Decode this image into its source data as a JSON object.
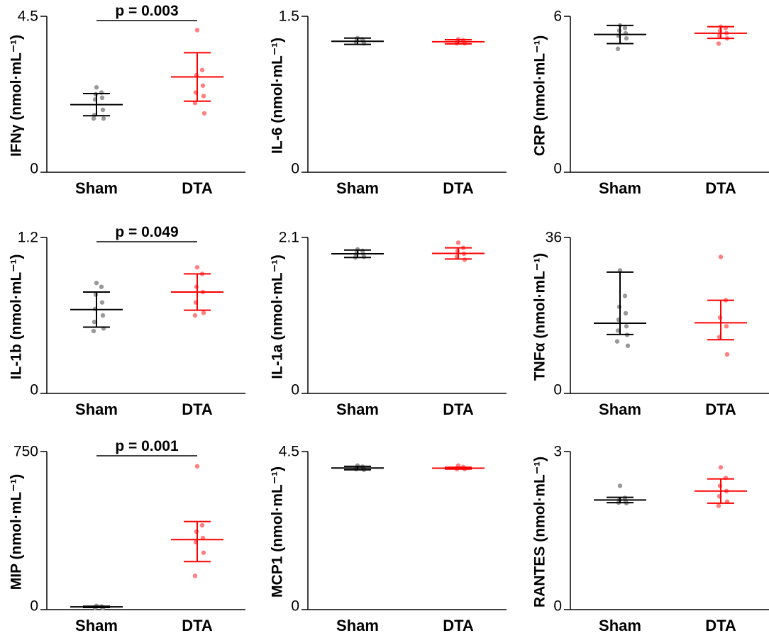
{
  "figure": {
    "group_colors": {
      "Sham": "#000000",
      "DTA": "#ff0000"
    },
    "point_colors": {
      "Sham": "#999999",
      "DTA": "#ff8080"
    }
  },
  "chart_data": [
    {
      "type": "scatter",
      "title": "",
      "xlabel": "",
      "ylabel": "IFNγ (nmol·mL⁻¹)",
      "categories": [
        "Sham",
        "DTA"
      ],
      "ylim": [
        0,
        4.5
      ],
      "yticks": [
        "0",
        "4.5"
      ],
      "pvalue": "p = 0.003",
      "series": [
        {
          "name": "Sham",
          "mean": 1.95,
          "error_low": 1.63,
          "error_high": 2.27,
          "points": [
            2.45,
            2.3,
            2.25,
            2.15,
            2.1,
            1.8,
            1.65,
            1.55,
            1.55
          ]
        },
        {
          "name": "DTA",
          "mean": 2.75,
          "error_low": 2.05,
          "error_high": 3.45,
          "points": [
            4.1,
            2.95,
            2.8,
            2.5,
            2.3,
            2.2,
            2.0,
            1.7
          ]
        }
      ]
    },
    {
      "type": "scatter",
      "title": "",
      "xlabel": "",
      "ylabel": "IL-6 (nmol·mL⁻¹)",
      "categories": [
        "Sham",
        "DTA"
      ],
      "ylim": [
        0,
        1.5
      ],
      "yticks": [
        "0",
        "1.5"
      ],
      "pvalue": "",
      "series": [
        {
          "name": "Sham",
          "mean": 1.26,
          "error_low": 1.23,
          "error_high": 1.29,
          "points": [
            1.29,
            1.28,
            1.27,
            1.26,
            1.25,
            1.24
          ]
        },
        {
          "name": "DTA",
          "mean": 1.255,
          "error_low": 1.235,
          "error_high": 1.275,
          "points": [
            1.28,
            1.27,
            1.26,
            1.25,
            1.24,
            1.24
          ]
        }
      ]
    },
    {
      "type": "scatter",
      "title": "",
      "xlabel": "",
      "ylabel": "CRP (nmol·mL⁻¹)",
      "categories": [
        "Sham",
        "DTA"
      ],
      "ylim": [
        0,
        6
      ],
      "yticks": [
        "0",
        "6"
      ],
      "pvalue": "",
      "series": [
        {
          "name": "Sham",
          "mean": 5.3,
          "error_low": 4.95,
          "error_high": 5.65,
          "points": [
            5.65,
            5.55,
            5.45,
            5.35,
            5.25,
            5.15,
            4.75
          ]
        },
        {
          "name": "DTA",
          "mean": 5.35,
          "error_low": 5.15,
          "error_high": 5.6,
          "points": [
            5.6,
            5.55,
            5.45,
            5.35,
            5.25,
            5.15,
            4.95
          ]
        }
      ]
    },
    {
      "type": "scatter",
      "title": "",
      "xlabel": "",
      "ylabel": "IL-1b (nmol·mL⁻¹)",
      "categories": [
        "Sham",
        "DTA"
      ],
      "ylim": [
        0,
        1.2
      ],
      "yticks": [
        "0",
        "1.2"
      ],
      "pvalue": "p = 0.049",
      "series": [
        {
          "name": "Sham",
          "mean": 0.645,
          "error_low": 0.51,
          "error_high": 0.78,
          "points": [
            0.85,
            0.82,
            0.76,
            0.7,
            0.65,
            0.6,
            0.55,
            0.5,
            0.48
          ]
        },
        {
          "name": "DTA",
          "mean": 0.78,
          "error_low": 0.64,
          "error_high": 0.92,
          "points": [
            0.97,
            0.92,
            0.82,
            0.78,
            0.7,
            0.62,
            0.6
          ]
        }
      ]
    },
    {
      "type": "scatter",
      "title": "",
      "xlabel": "",
      "ylabel": "IL-1a (nmol·mL⁻¹)",
      "categories": [
        "Sham",
        "DTA"
      ],
      "ylim": [
        0,
        2.1
      ],
      "yticks": [
        "0",
        "2.1"
      ],
      "pvalue": "",
      "series": [
        {
          "name": "Sham",
          "mean": 1.88,
          "error_low": 1.83,
          "error_high": 1.93,
          "points": [
            1.94,
            1.92,
            1.9,
            1.88,
            1.86,
            1.84,
            1.83
          ]
        },
        {
          "name": "DTA",
          "mean": 1.885,
          "error_low": 1.81,
          "error_high": 1.96,
          "points": [
            2.03,
            1.96,
            1.92,
            1.88,
            1.84,
            1.8
          ]
        }
      ]
    },
    {
      "type": "scatter",
      "title": "",
      "xlabel": "",
      "ylabel": "TNFα (nmol·mL⁻¹)",
      "categories": [
        "Sham",
        "DTA"
      ],
      "ylim": [
        0,
        36
      ],
      "yticks": [
        "0",
        "36"
      ],
      "pvalue": "",
      "series": [
        {
          "name": "Sham",
          "mean": 16.2,
          "error_low": 13.6,
          "error_high": 28.0,
          "points": [
            28.4,
            22.5,
            20.0,
            18.5,
            17.0,
            15.5,
            14.5,
            13.5,
            12.0,
            11.0
          ]
        },
        {
          "name": "DTA",
          "mean": 16.3,
          "error_low": 12.4,
          "error_high": 21.5,
          "points": [
            31.5,
            21.5,
            17.5,
            15.5,
            13.0,
            9.0
          ]
        }
      ]
    },
    {
      "type": "scatter",
      "title": "",
      "xlabel": "",
      "ylabel": "MIP (nmol·mL⁻¹)",
      "categories": [
        "Sham",
        "DTA"
      ],
      "ylim": [
        0,
        750
      ],
      "yticks": [
        "0",
        "750"
      ],
      "pvalue": "p = 0.001",
      "series": [
        {
          "name": "Sham",
          "mean": 13,
          "error_low": 10,
          "error_high": 16,
          "points": [
            18,
            15,
            12,
            10,
            9,
            8
          ]
        },
        {
          "name": "DTA",
          "mean": 332,
          "error_low": 228,
          "error_high": 418,
          "points": [
            680,
            400,
            370,
            340,
            320,
            270,
            160
          ]
        }
      ]
    },
    {
      "type": "scatter",
      "title": "",
      "xlabel": "",
      "ylabel": "MCP1 (nmol·mL⁻¹)",
      "categories": [
        "Sham",
        "DTA"
      ],
      "ylim": [
        0,
        4.5
      ],
      "yticks": [
        "0",
        "4.5"
      ],
      "pvalue": "",
      "series": [
        {
          "name": "Sham",
          "mean": 4.03,
          "error_low": 3.98,
          "error_high": 4.08,
          "points": [
            4.1,
            4.07,
            4.05,
            4.02,
            4.0,
            3.98
          ]
        },
        {
          "name": "DTA",
          "mean": 4.025,
          "error_low": 4.0,
          "error_high": 4.05,
          "points": [
            4.1,
            4.06,
            4.04,
            4.02,
            4.0,
            4.0
          ]
        }
      ]
    },
    {
      "type": "scatter",
      "title": "",
      "xlabel": "",
      "ylabel": "RANTES (nmol·mL⁻¹)",
      "categories": [
        "Sham",
        "DTA"
      ],
      "ylim": [
        0,
        3
      ],
      "yticks": [
        "0",
        "3"
      ],
      "pvalue": "",
      "series": [
        {
          "name": "Sham",
          "mean": 2.08,
          "error_low": 2.03,
          "error_high": 2.13,
          "points": [
            2.35,
            2.12,
            2.08,
            2.05,
            2.03,
            2.02
          ]
        },
        {
          "name": "DTA",
          "mean": 2.25,
          "error_low": 2.02,
          "error_high": 2.48,
          "points": [
            2.7,
            2.5,
            2.35,
            2.25,
            2.15,
            2.05,
            1.97
          ]
        }
      ]
    }
  ]
}
